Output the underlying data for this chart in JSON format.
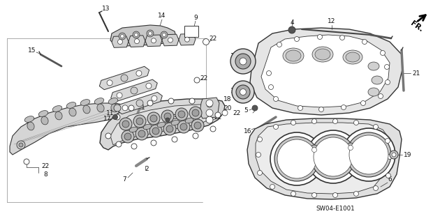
{
  "bg_color": "#ffffff",
  "fig_width": 6.2,
  "fig_height": 3.2,
  "dpi": 100,
  "diagram_code": "SW04-E1001",
  "lc": "#333333",
  "tc": "#111111",
  "fs": 6.5,
  "fs_code": 6.2
}
